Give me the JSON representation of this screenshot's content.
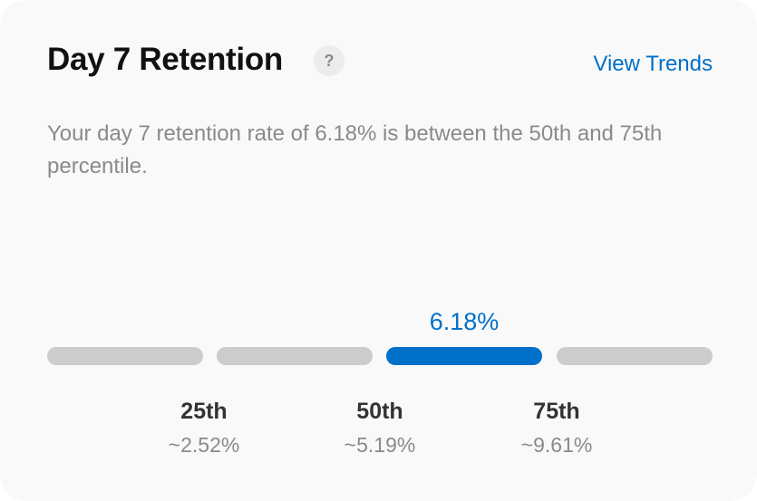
{
  "card": {
    "title": "Day 7 Retention",
    "help_icon": "?",
    "link_label": "View Trends",
    "description": "Your day 7 retention rate of 6.18% is between the 50th and 75th percentile.",
    "current_value": "6.18%",
    "active_segment": 3,
    "colors": {
      "accent": "#0070c9",
      "inactive": "#cccccc"
    },
    "percentiles": [
      {
        "label": "25th",
        "value": "~2.52%"
      },
      {
        "label": "50th",
        "value": "~5.19%"
      },
      {
        "label": "75th",
        "value": "~9.61%"
      }
    ]
  }
}
